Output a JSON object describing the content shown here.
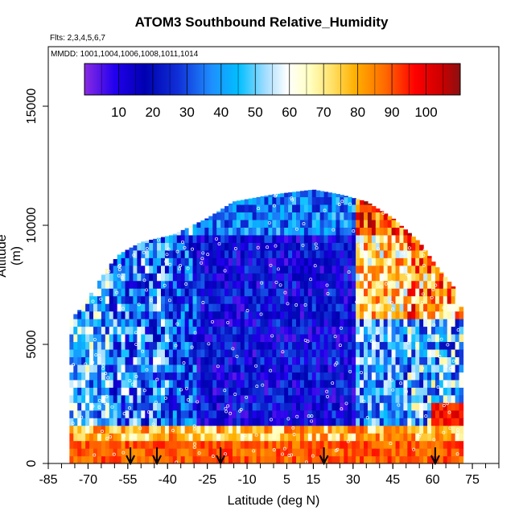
{
  "chart_data": {
    "type": "heatmap",
    "title": "ATOM3 Southbound Relative_Humidity",
    "subtitle_flights": "Flts: 2,3,4,5,6,7",
    "subtitle_dates": "MMDD: 1001,1004,1006,1008,1011,1014",
    "xlabel": "Latitude (deg N)",
    "ylabel": "Altitude (m)",
    "xlim": [
      -85,
      85
    ],
    "ylim": [
      0,
      17500
    ],
    "x_ticks": [
      -85,
      -70,
      -55,
      -40,
      -25,
      -10,
      5,
      15,
      30,
      45,
      60,
      75
    ],
    "y_ticks": [
      0,
      5000,
      10000,
      15000
    ],
    "colorbar": {
      "ticks": [
        10,
        20,
        30,
        40,
        50,
        60,
        70,
        80,
        90,
        100
      ],
      "range": [
        0,
        110
      ]
    },
    "arrow_latitudes": [
      -54,
      -44,
      -20,
      19,
      61
    ],
    "data_extent": {
      "lat_range": [
        -77,
        72
      ],
      "alt_range": [
        0,
        12000
      ]
    },
    "regions": [
      {
        "lat_range": [
          -77,
          -62
        ],
        "alt_range": [
          0,
          6000
        ],
        "rh_approx": 45
      },
      {
        "lat_range": [
          -62,
          -40
        ],
        "alt_range": [
          0,
          8000
        ],
        "rh_approx": 35
      },
      {
        "lat_range": [
          -30,
          30
        ],
        "alt_range": [
          2000,
          10000
        ],
        "rh_approx": 20
      },
      {
        "lat_range": [
          30,
          60
        ],
        "alt_range": [
          6000,
          10000
        ],
        "rh_approx": 75
      },
      {
        "lat_range": [
          50,
          70
        ],
        "alt_range": [
          0,
          1000
        ],
        "rh_approx": 95
      },
      {
        "lat_range": [
          -77,
          72
        ],
        "alt_range": [
          0,
          800
        ],
        "rh_approx": 82
      }
    ]
  }
}
